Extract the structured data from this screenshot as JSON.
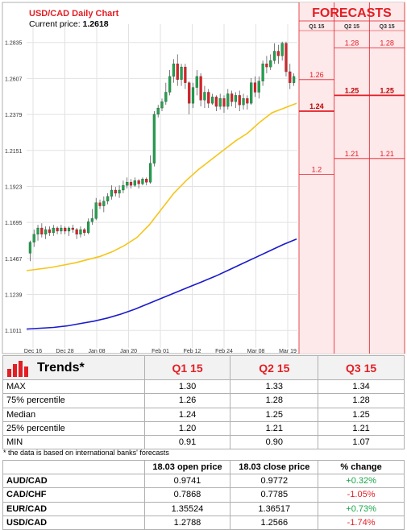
{
  "chart_data": {
    "type": "candlestick",
    "title": "USD/CAD Daily Chart",
    "current_price_label": "Current price:",
    "current_price": "1.2618",
    "ylim": [
      1.09,
      1.29
    ],
    "y_ticks": [
      "1.2835",
      "1.2607",
      "1.2379",
      "1.2151",
      "1.1923",
      "1.1695",
      "1.1467",
      "1.1239",
      "1.1011"
    ],
    "x_ticks": [
      "Dec 16",
      "Dec 28",
      "Jan 08",
      "Jan 20",
      "Feb 01",
      "Feb 12",
      "Feb 24",
      "Mar 08",
      "Mar 19"
    ],
    "candles": [
      [
        1.15,
        1.157,
        1.145,
        1.158
      ],
      [
        1.157,
        1.162,
        1.154,
        1.165
      ],
      [
        1.162,
        1.166,
        1.158,
        1.168
      ],
      [
        1.166,
        1.162,
        1.16,
        1.169
      ],
      [
        1.162,
        1.165,
        1.159,
        1.167
      ],
      [
        1.165,
        1.163,
        1.161,
        1.167
      ],
      [
        1.163,
        1.166,
        1.161,
        1.168
      ],
      [
        1.166,
        1.164,
        1.162,
        1.167
      ],
      [
        1.164,
        1.166,
        1.162,
        1.168
      ],
      [
        1.166,
        1.164,
        1.162,
        1.167
      ],
      [
        1.164,
        1.166,
        1.161,
        1.167
      ],
      [
        1.166,
        1.165,
        1.163,
        1.168
      ],
      [
        1.165,
        1.162,
        1.159,
        1.166
      ],
      [
        1.162,
        1.165,
        1.16,
        1.167
      ],
      [
        1.165,
        1.163,
        1.161,
        1.166
      ],
      [
        1.163,
        1.17,
        1.162,
        1.172
      ],
      [
        1.17,
        1.172,
        1.168,
        1.178
      ],
      [
        1.172,
        1.182,
        1.171,
        1.185
      ],
      [
        1.182,
        1.18,
        1.178,
        1.184
      ],
      [
        1.18,
        1.183,
        1.176,
        1.186
      ],
      [
        1.183,
        1.186,
        1.181,
        1.188
      ],
      [
        1.186,
        1.19,
        1.184,
        1.193
      ],
      [
        1.19,
        1.188,
        1.186,
        1.192
      ],
      [
        1.188,
        1.19,
        1.185,
        1.193
      ],
      [
        1.19,
        1.193,
        1.188,
        1.196
      ],
      [
        1.193,
        1.195,
        1.191,
        1.198
      ],
      [
        1.195,
        1.193,
        1.191,
        1.197
      ],
      [
        1.193,
        1.196,
        1.192,
        1.198
      ],
      [
        1.196,
        1.194,
        1.191,
        1.197
      ],
      [
        1.194,
        1.197,
        1.193,
        1.198
      ],
      [
        1.197,
        1.195,
        1.193,
        1.198
      ],
      [
        1.195,
        1.207,
        1.194,
        1.212
      ],
      [
        1.207,
        1.238,
        1.205,
        1.24
      ],
      [
        1.238,
        1.242,
        1.236,
        1.244
      ],
      [
        1.242,
        1.246,
        1.24,
        1.248
      ],
      [
        1.246,
        1.252,
        1.244,
        1.258
      ],
      [
        1.252,
        1.262,
        1.25,
        1.266
      ],
      [
        1.262,
        1.27,
        1.258,
        1.273
      ],
      [
        1.27,
        1.26,
        1.256,
        1.276
      ],
      [
        1.26,
        1.268,
        1.256,
        1.27
      ],
      [
        1.268,
        1.258,
        1.254,
        1.27
      ],
      [
        1.258,
        1.245,
        1.238,
        1.259
      ],
      [
        1.245,
        1.255,
        1.242,
        1.258
      ],
      [
        1.255,
        1.262,
        1.25,
        1.266
      ],
      [
        1.262,
        1.247,
        1.243,
        1.264
      ],
      [
        1.247,
        1.252,
        1.242,
        1.256
      ],
      [
        1.252,
        1.245,
        1.242,
        1.254
      ],
      [
        1.245,
        1.249,
        1.244,
        1.251
      ],
      [
        1.249,
        1.243,
        1.24,
        1.25
      ],
      [
        1.243,
        1.248,
        1.241,
        1.251
      ],
      [
        1.248,
        1.243,
        1.239,
        1.25
      ],
      [
        1.243,
        1.251,
        1.241,
        1.254
      ],
      [
        1.251,
        1.246,
        1.243,
        1.253
      ],
      [
        1.246,
        1.25,
        1.242,
        1.252
      ],
      [
        1.25,
        1.244,
        1.24,
        1.253
      ],
      [
        1.244,
        1.248,
        1.241,
        1.251
      ],
      [
        1.248,
        1.245,
        1.241,
        1.25
      ],
      [
        1.245,
        1.258,
        1.244,
        1.261
      ],
      [
        1.258,
        1.252,
        1.249,
        1.262
      ],
      [
        1.252,
        1.259,
        1.248,
        1.262
      ],
      [
        1.259,
        1.27,
        1.256,
        1.272
      ],
      [
        1.27,
        1.268,
        1.264,
        1.275
      ],
      [
        1.268,
        1.272,
        1.266,
        1.276
      ],
      [
        1.272,
        1.278,
        1.27,
        1.283
      ],
      [
        1.278,
        1.275,
        1.27,
        1.282
      ],
      [
        1.275,
        1.283,
        1.272,
        1.284
      ],
      [
        1.283,
        1.265,
        1.262,
        1.284
      ],
      [
        1.265,
        1.258,
        1.254,
        1.27
      ],
      [
        1.258,
        1.262,
        1.256,
        1.264
      ]
    ],
    "ma50": [
      1.139,
      1.14,
      1.141,
      1.1425,
      1.144,
      1.146,
      1.148,
      1.151,
      1.155,
      1.16,
      1.168,
      1.178,
      1.188,
      1.196,
      1.203,
      1.209,
      1.215,
      1.221,
      1.226,
      1.233,
      1.239,
      1.242,
      1.245
    ],
    "ma200": [
      1.102,
      1.1025,
      1.103,
      1.104,
      1.1055,
      1.107,
      1.109,
      1.1115,
      1.1145,
      1.118,
      1.1215,
      1.125,
      1.1285,
      1.132,
      1.1355,
      1.1395,
      1.1435,
      1.1475,
      1.1515,
      1.1555,
      1.159
    ],
    "forecast_title": "FORECASTS",
    "forecast_columns": [
      "Q1 15",
      "Q2 15",
      "Q3 15"
    ],
    "forecast_levels": [
      {
        "label": "1.26",
        "value": 1.26
      },
      {
        "label": "1.24",
        "value": 1.24
      },
      {
        "label": "1.2",
        "value": 1.2
      },
      {
        "label": "1.28",
        "value": 1.28
      },
      {
        "label": "1.25",
        "value": 1.25
      },
      {
        "label": "1.21",
        "value": 1.21
      },
      {
        "label": "1.28",
        "value": 1.28
      },
      {
        "label": "1.25",
        "value": 1.25
      },
      {
        "label": "1.21",
        "value": 1.21
      }
    ]
  },
  "trends": {
    "title": "Trends*",
    "columns": [
      "Q1 15",
      "Q2 15",
      "Q3 15"
    ],
    "rows": [
      {
        "label": "MAX",
        "values": [
          "1.30",
          "1.33",
          "1.34"
        ]
      },
      {
        "label": "75% percentile",
        "values": [
          "1.26",
          "1.28",
          "1.28"
        ]
      },
      {
        "label": "Median",
        "values": [
          "1.24",
          "1.25",
          "1.25"
        ]
      },
      {
        "label": "25% percentile",
        "values": [
          "1.20",
          "1.21",
          "1.21"
        ]
      },
      {
        "label": "MIN",
        "values": [
          "0.91",
          "0.90",
          "1.07"
        ]
      }
    ],
    "footnote": "* the data is based on international banks' forecasts"
  },
  "prices": {
    "columns": [
      "18.03 open price",
      "18.03 close price",
      "% change"
    ],
    "rows": [
      {
        "pair": "AUD/CAD",
        "open": "0.9741",
        "close": "0.9772",
        "change": "+0.32%"
      },
      {
        "pair": "CAD/CHF",
        "open": "0.7868",
        "close": "0.7785",
        "change": "-1.05%"
      },
      {
        "pair": "EUR/CAD",
        "open": "1.35524",
        "close": "1.36517",
        "change": "+0.73%"
      },
      {
        "pair": "USD/CAD",
        "open": "1.2788",
        "close": "1.2566",
        "change": "-1.74%"
      }
    ]
  },
  "colors": {
    "accent_red": "#e31e24",
    "up_candle": "#1aa64a",
    "down_candle": "#e31e24",
    "ma50": "#f5c518",
    "ma200": "#1a1acc",
    "forecast_bg": "#fde8ea",
    "positive": "#1aa64a",
    "negative": "#e31e24"
  }
}
